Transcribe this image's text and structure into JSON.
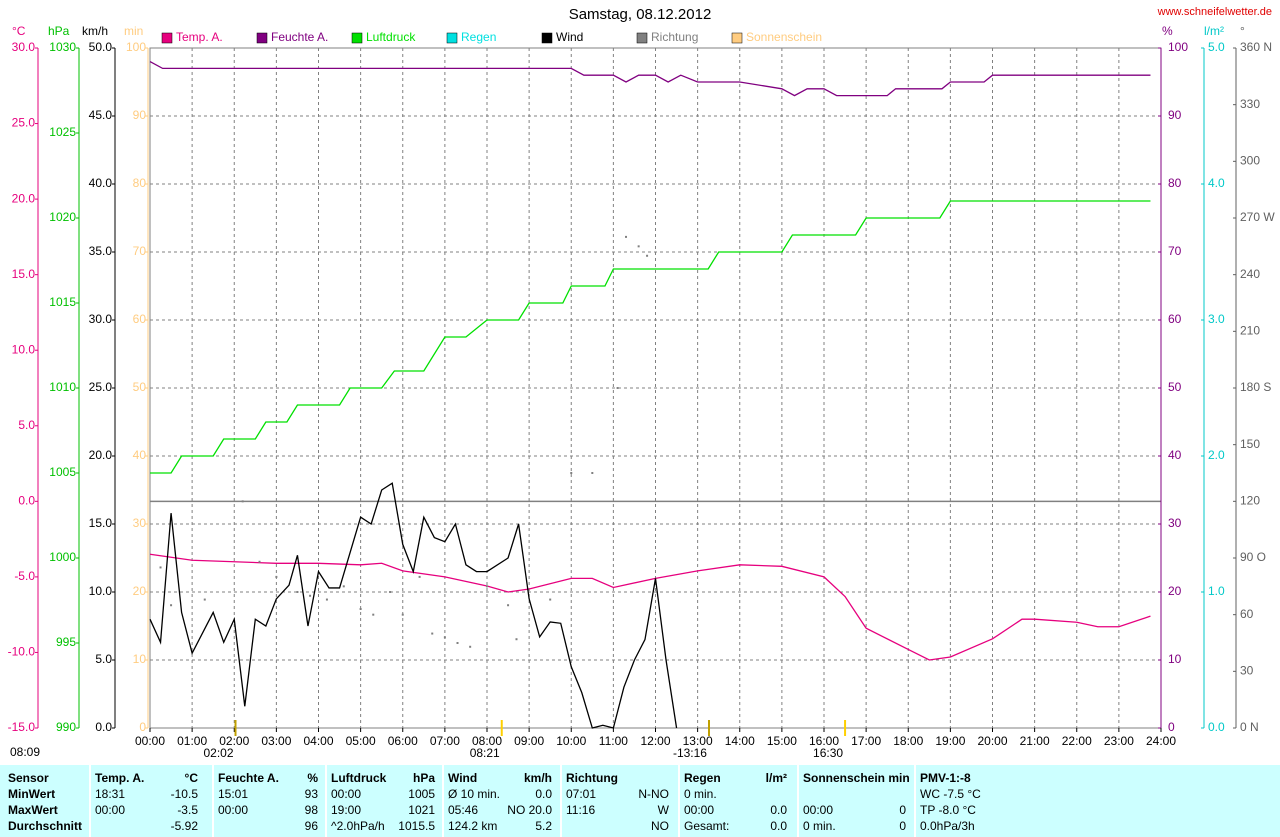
{
  "chart_data": {
    "type": "line",
    "title": "Samstag, 08.12.2012",
    "source": "www.schneifelwetter.de",
    "day_length": "08:09",
    "xlim": [
      0,
      24
    ],
    "xticks": [
      {
        "value": 0,
        "label": "00:00"
      },
      {
        "value": 1,
        "label": "01:00"
      },
      {
        "value": 2,
        "label": "02:00"
      },
      {
        "value": 3,
        "label": "03:00"
      },
      {
        "value": 4,
        "label": "04:00"
      },
      {
        "value": 5,
        "label": "05:00"
      },
      {
        "value": 6,
        "label": "06:00"
      },
      {
        "value": 7,
        "label": "07:00"
      },
      {
        "value": 8,
        "label": "08:00"
      },
      {
        "value": 9,
        "label": "09:00"
      },
      {
        "value": 10,
        "label": "10:00"
      },
      {
        "value": 11,
        "label": "11:00"
      },
      {
        "value": 12,
        "label": "12:00"
      },
      {
        "value": 13,
        "label": "13:00"
      },
      {
        "value": 14,
        "label": "14:00"
      },
      {
        "value": 15,
        "label": "15:00"
      },
      {
        "value": 16,
        "label": "16:00"
      },
      {
        "value": 17,
        "label": "17:00"
      },
      {
        "value": 18,
        "label": "18:00"
      },
      {
        "value": 19,
        "label": "19:00"
      },
      {
        "value": 20,
        "label": "20:00"
      },
      {
        "value": 21,
        "label": "21:00"
      },
      {
        "value": 22,
        "label": "22:00"
      },
      {
        "value": 23,
        "label": "23:00"
      },
      {
        "value": 24,
        "label": "24:00"
      }
    ],
    "markers": [
      {
        "label": "02:02",
        "value": 2.03,
        "color": "#c0a000"
      },
      {
        "label": "08:21",
        "value": 8.35,
        "color": "#ffd000"
      },
      {
        "label": "-13:16",
        "value": 13.27,
        "color": "#c0a000"
      },
      {
        "label": "16:30",
        "value": 16.5,
        "color": "#ffd000"
      }
    ],
    "axes": [
      {
        "unit": "°C",
        "side": "left",
        "color": "#e6007e",
        "ylim": [
          -15,
          30
        ],
        "yticks": [
          {
            "value": 30,
            "label": "30.0"
          },
          {
            "value": 25,
            "label": "25.0"
          },
          {
            "value": 20,
            "label": "20.0"
          },
          {
            "value": 15,
            "label": "15.0"
          },
          {
            "value": 10,
            "label": "10.0"
          },
          {
            "value": 5,
            "label": "5.0"
          },
          {
            "value": 0,
            "label": "0.0"
          },
          {
            "value": -5,
            "label": "-5.0"
          },
          {
            "value": -10,
            "label": "-10.0"
          },
          {
            "value": -15,
            "label": "-15.0"
          }
        ],
        "zero_line": true
      },
      {
        "unit": "hPa",
        "side": "left",
        "color": "#00c000",
        "ylim": [
          990,
          1030
        ],
        "yticks": [
          1030,
          1025,
          1020,
          1015,
          1010,
          1005,
          1000,
          995,
          990
        ]
      },
      {
        "unit": "km/h",
        "side": "left",
        "color": "#000000",
        "ylim": [
          0,
          50
        ],
        "yticks": [
          {
            "value": 50,
            "label": "50.0"
          },
          {
            "value": 45,
            "label": "45.0"
          },
          {
            "value": 40,
            "label": "40.0"
          },
          {
            "value": 35,
            "label": "35.0"
          },
          {
            "value": 30,
            "label": "30.0"
          },
          {
            "value": 25,
            "label": "25.0"
          },
          {
            "value": 20,
            "label": "20.0"
          },
          {
            "value": 15,
            "label": "15.0"
          },
          {
            "value": 10,
            "label": "10.0"
          },
          {
            "value": 5,
            "label": "5.0"
          },
          {
            "value": 0,
            "label": "0.0"
          }
        ],
        "grid": true
      },
      {
        "unit": "min",
        "side": "left",
        "color": "#ffcc80",
        "ylim": [
          0,
          100
        ],
        "yticks": [
          100,
          90,
          80,
          70,
          60,
          50,
          40,
          30,
          20,
          10,
          0
        ]
      },
      {
        "unit": "%",
        "side": "right",
        "color": "#800080",
        "ylim": [
          0,
          100
        ],
        "yticks": [
          100,
          90,
          80,
          70,
          60,
          50,
          40,
          30,
          20,
          10,
          0
        ]
      },
      {
        "unit": "l/m²",
        "side": "right",
        "color": "#00c8c8",
        "ylim": [
          0,
          5
        ],
        "yticks": [
          {
            "value": 5,
            "label": "5.0"
          },
          {
            "value": 4,
            "label": "4.0"
          },
          {
            "value": 3,
            "label": "3.0"
          },
          {
            "value": 2,
            "label": "2.0"
          },
          {
            "value": 1,
            "label": "1.0"
          },
          {
            "value": 0,
            "label": "0.0"
          }
        ]
      },
      {
        "unit": "°",
        "side": "right",
        "color": "#606060",
        "ylim": [
          0,
          360
        ],
        "yticks": [
          {
            "value": 360,
            "label": "360 N"
          },
          330,
          300,
          {
            "value": 270,
            "label": "270 W"
          },
          240,
          210,
          {
            "value": 180,
            "label": "180 S"
          },
          150,
          120,
          {
            "value": 90,
            "label": "90 O"
          },
          60,
          30,
          {
            "value": 0,
            "label": "0 N"
          }
        ]
      }
    ],
    "series": [
      {
        "name": "Temp. A.",
        "color": "#e6007e",
        "axis": "°C",
        "x": [
          0,
          1,
          2,
          3,
          4,
          5,
          5.5,
          6,
          7,
          8,
          8.5,
          9,
          10,
          10.5,
          11,
          12,
          13,
          14,
          15,
          16,
          16.5,
          17,
          18,
          18.5,
          19,
          20,
          20.7,
          21,
          22,
          22.5,
          23,
          23.75
        ],
        "values": [
          -3.5,
          -3.9,
          -4.0,
          -4.1,
          -4.1,
          -4.2,
          -4.1,
          -4.6,
          -5.0,
          -5.6,
          -6.0,
          -5.8,
          -5.1,
          -5.1,
          -5.7,
          -5.1,
          -4.6,
          -4.2,
          -4.3,
          -5.0,
          -6.3,
          -8.4,
          -9.8,
          -10.5,
          -10.3,
          -9.1,
          -7.8,
          -7.8,
          -8.0,
          -8.3,
          -8.3,
          -7.6
        ]
      },
      {
        "name": "Feuchte A.",
        "color": "#800080",
        "axis": "%",
        "x": [
          0,
          0.3,
          10,
          10.3,
          11,
          11.3,
          11.6,
          12,
          12.3,
          12.6,
          13,
          14,
          15,
          15.3,
          15.6,
          16,
          16.3,
          17.5,
          17.7,
          18.8,
          19,
          19.8,
          20,
          23.75
        ],
        "values": [
          98,
          97,
          97,
          96,
          96,
          95,
          96,
          96,
          95,
          96,
          95,
          95,
          94,
          93,
          94,
          94,
          93,
          93,
          94,
          94,
          95,
          95,
          96,
          96
        ]
      },
      {
        "name": "Luftdruck",
        "color": "#00e000",
        "axis": "hPa",
        "x": [
          0,
          0.5,
          0.75,
          1.5,
          1.75,
          2.5,
          2.75,
          3.25,
          3.5,
          4.5,
          4.75,
          5.5,
          5.8,
          6.5,
          7.0,
          7.5,
          8.0,
          8.75,
          9.0,
          9.8,
          10.0,
          10.8,
          11.0,
          13.25,
          13.5,
          15.0,
          15.25,
          16.75,
          17.0,
          18.75,
          19.0,
          23.75
        ],
        "values": [
          1005,
          1005,
          1006,
          1006,
          1007,
          1007,
          1008,
          1008,
          1009,
          1009,
          1010,
          1010,
          1011,
          1011,
          1013,
          1013,
          1014,
          1014,
          1015,
          1015,
          1016,
          1016,
          1017,
          1017,
          1018,
          1018,
          1019,
          1019,
          1020,
          1020,
          1021,
          1021
        ]
      },
      {
        "name": "Regen",
        "color": "#00e0e0",
        "axis": "l/m²",
        "x": [],
        "values": []
      },
      {
        "name": "Wind",
        "color": "#000000",
        "axis": "km/h",
        "x": [
          0,
          0.25,
          0.5,
          0.75,
          1.0,
          1.5,
          1.75,
          2.0,
          2.25,
          2.5,
          2.75,
          3.0,
          3.3,
          3.5,
          3.75,
          4.0,
          4.25,
          4.5,
          5.0,
          5.25,
          5.5,
          5.75,
          6.0,
          6.25,
          6.5,
          6.75,
          7.0,
          7.25,
          7.5,
          7.75,
          8.0,
          8.5,
          8.75,
          9.0,
          9.25,
          9.5,
          9.75,
          10.0,
          10.25,
          10.5,
          10.75,
          11.0,
          11.25,
          11.5,
          11.75,
          12.0,
          12.25,
          12.5
        ],
        "values": [
          8.0,
          6.3,
          15.8,
          8.5,
          5.5,
          8.5,
          6.3,
          8.0,
          1.6,
          8.0,
          7.5,
          9.5,
          10.5,
          12.7,
          7.5,
          11.5,
          10.3,
          10.3,
          15.5,
          15.0,
          17.5,
          18.0,
          13.5,
          11.5,
          15.5,
          14.0,
          13.7,
          15.0,
          12.0,
          11.5,
          11.5,
          12.5,
          15.0,
          9.5,
          6.7,
          7.8,
          7.7,
          4.5,
          2.6,
          0,
          0.2,
          0,
          3.0,
          5.0,
          6.5,
          11.0,
          5.0,
          0
        ]
      },
      {
        "name": "Richtung",
        "color": "#808080",
        "axis": "°",
        "marker": "dots",
        "x": [
          0.25,
          0.5,
          1.3,
          2.2,
          2.6,
          3.0,
          3.5,
          3.8,
          4.2,
          4.6,
          5.0,
          5.3,
          5.7,
          6.0,
          6.4,
          6.7,
          7.0,
          7.3,
          7.6,
          8.0,
          8.5,
          8.7,
          9.5,
          10.0,
          10.5,
          11.1,
          11.3,
          11.6,
          11.8
        ],
        "values": [
          85,
          65,
          68,
          120,
          88,
          80,
          72,
          70,
          68,
          75,
          63,
          60,
          72,
          60,
          80,
          50,
          48,
          45,
          43,
          75,
          65,
          47,
          68,
          135,
          135,
          180,
          260,
          255,
          250
        ]
      },
      {
        "name": "Sonnenschein",
        "color": "#ffcc80",
        "axis": "min",
        "x": [],
        "values": []
      }
    ]
  },
  "stats": [
    {
      "header": [
        "Sensor"
      ],
      "rows": [
        [
          "MinWert"
        ],
        [
          "MaxWert"
        ],
        [
          "Durchschnitt"
        ]
      ]
    },
    {
      "header": [
        "Temp. A.",
        "°C"
      ],
      "rows": [
        [
          "18:31",
          "-10.5"
        ],
        [
          "00:00",
          "-3.5"
        ],
        [
          null,
          "-5.92"
        ]
      ]
    },
    {
      "header": [
        "Feuchte A.",
        "%"
      ],
      "rows": [
        [
          "15:01",
          "93"
        ],
        [
          "00:00",
          "98"
        ],
        [
          null,
          "96"
        ]
      ]
    },
    {
      "header": [
        "Luftdruck",
        "hPa"
      ],
      "rows": [
        [
          "00:00",
          "1005"
        ],
        [
          "19:00",
          "1021"
        ],
        [
          "^2.0hPa/h",
          "1015.5"
        ]
      ]
    },
    {
      "header": [
        "Wind",
        "km/h"
      ],
      "rows": [
        [
          "Ø 10 min.",
          "0.0"
        ],
        [
          "05:46",
          "NO 20.0"
        ],
        [
          "124.2 km",
          "5.2"
        ]
      ]
    },
    {
      "header": [
        "Richtung"
      ],
      "rows": [
        [
          "07:01",
          "N-NO"
        ],
        [
          "11:16",
          "W"
        ],
        [
          null,
          "NO"
        ]
      ]
    },
    {
      "header": [
        "Regen",
        "l/m²"
      ],
      "rows": [
        [
          "0 min.",
          null
        ],
        [
          "00:00",
          "0.0"
        ],
        [
          "Gesamt:",
          "0.0"
        ]
      ]
    },
    {
      "header": [
        "Sonnenschein min"
      ],
      "rows": [
        [
          null,
          null
        ],
        [
          "00:00",
          "0"
        ],
        [
          "0 min.",
          "0"
        ]
      ]
    },
    {
      "header": [
        "PMV-1:-8"
      ],
      "rows": [
        [
          "WC -7.5 °C"
        ],
        [
          "TP -8.0 °C"
        ],
        [
          "0.0hPa/3h"
        ]
      ]
    }
  ]
}
